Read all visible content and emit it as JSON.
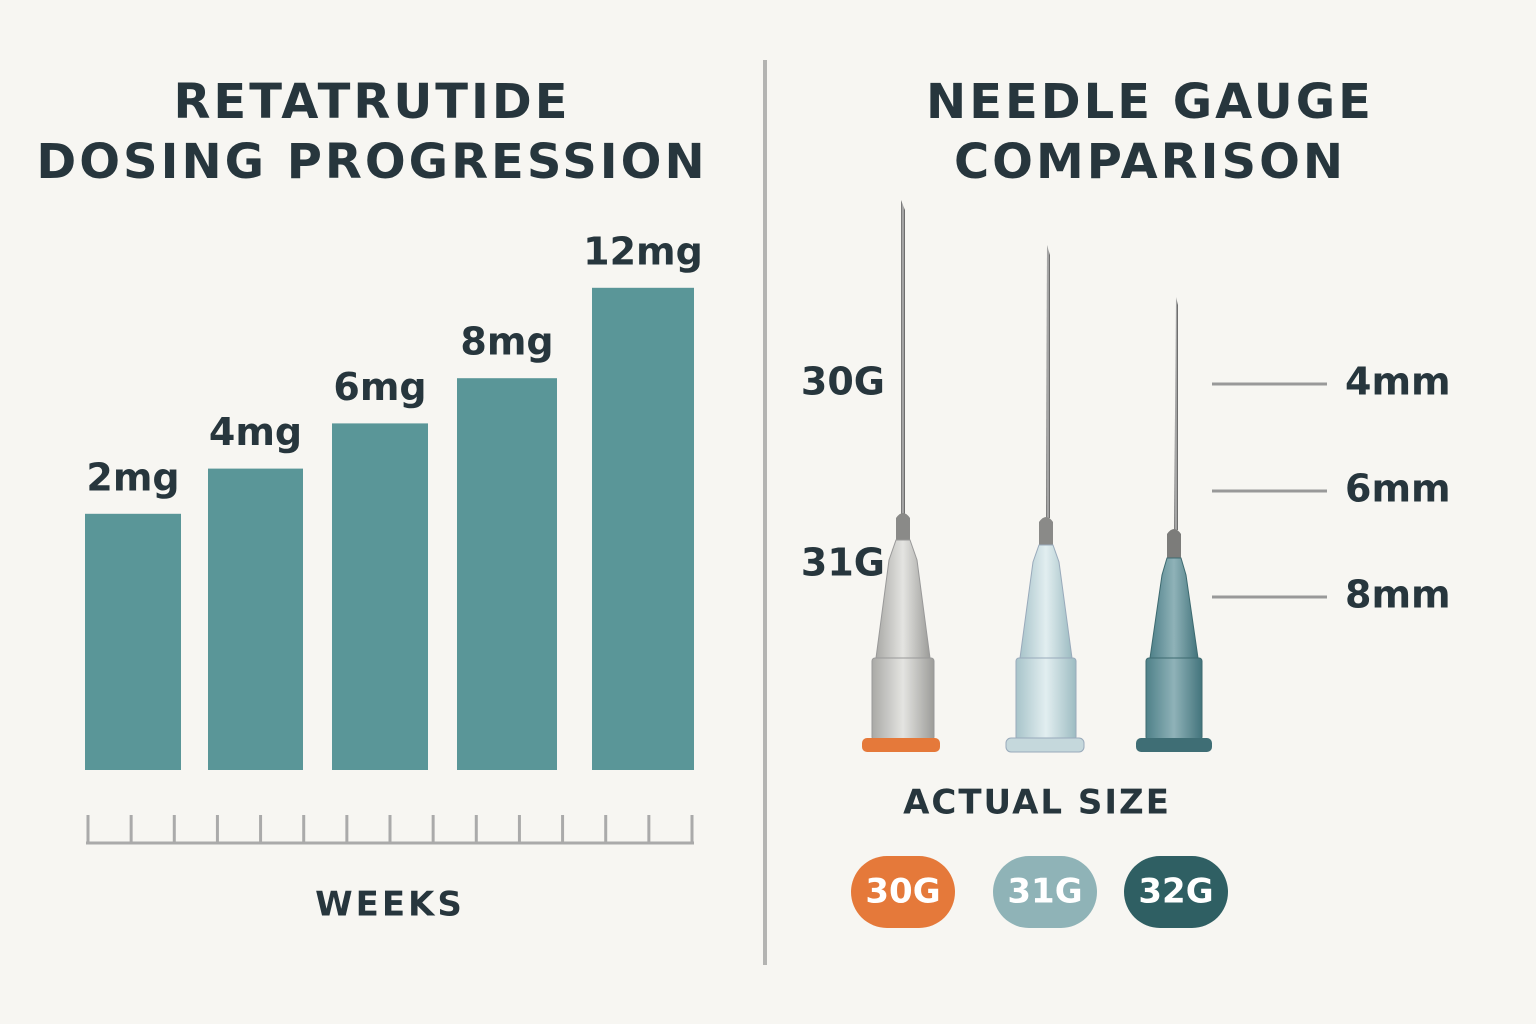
{
  "chart_data": {
    "type": "bar",
    "title": "RETATRUTIDE\nDOSING PROGRESSION",
    "categories": [
      null,
      null,
      null,
      null,
      null
    ],
    "values": [
      2,
      4,
      6,
      8,
      12
    ],
    "value_labels": [
      "2mg",
      "4mg",
      "6mg",
      "8mg",
      "12mg"
    ],
    "color": "#5a9698",
    "x_label": "WEEKS"
  },
  "needle_panel": {
    "title": "NEEDLE GAUGE\nCOMPARISON",
    "gauge_labels": [
      "30G",
      "31G"
    ],
    "length_labels": [
      "4mm",
      "6mm",
      "8mm"
    ],
    "caption": "ACTUAL SIZE",
    "badges": [
      {
        "label": "30G",
        "color": "#e5793a"
      },
      {
        "label": "31G",
        "color": "#8fb3b7"
      },
      {
        "label": "32G",
        "color": "#2f5f63"
      }
    ]
  }
}
